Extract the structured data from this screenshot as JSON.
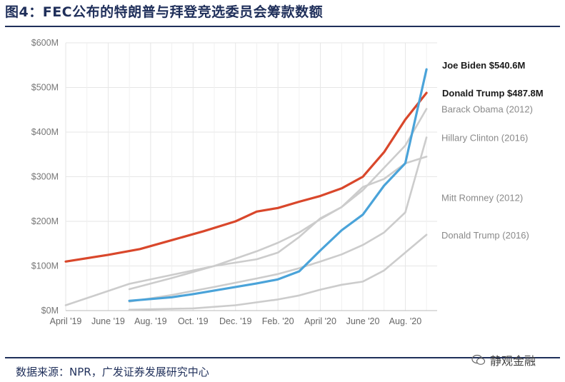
{
  "figure": {
    "title": "图4：FEC公布的特朗普与拜登竞选委员会筹款数额",
    "source": "数据来源：NPR，广发证券发展研究中心",
    "watermark": "静观金融"
  },
  "chart_data": {
    "type": "line",
    "x_ticks": [
      "April '19",
      "June '19",
      "Aug. '19",
      "Oct. '19",
      "Dec. '19",
      "Feb. '20",
      "April '20",
      "June '20",
      "Aug. '20"
    ],
    "y_ticks": [
      "$0M",
      "$100M",
      "$200M",
      "$300M",
      "$400M",
      "$500M",
      "$600M"
    ],
    "ylim": [
      0,
      600
    ],
    "y_unit": "$M",
    "x_unit": "months since April 2019",
    "xlim": [
      0,
      17.5
    ],
    "grid": true,
    "series": [
      {
        "name": "Donald Trump $487.8M",
        "color": "#d9472b",
        "highlight": true,
        "bold_label": true,
        "x": [
          0,
          2,
          3.5,
          5,
          6.5,
          8,
          9,
          10,
          11,
          12,
          13,
          14,
          15,
          16,
          17
        ],
        "values": [
          110,
          125,
          138,
          158,
          178,
          200,
          222,
          230,
          244,
          257,
          274,
          300,
          355,
          428,
          487.8
        ]
      },
      {
        "name": "Joe Biden $540.6M",
        "color": "#4aa3d9",
        "highlight": true,
        "bold_label": true,
        "x": [
          3,
          5,
          6,
          7,
          8,
          9,
          10,
          11,
          12,
          13,
          14,
          15,
          16,
          17
        ],
        "values": [
          22,
          30,
          37,
          45,
          53,
          61,
          70,
          88,
          135,
          180,
          215,
          280,
          330,
          540.6
        ]
      },
      {
        "name": "Barack Obama (2012)",
        "color": "#cccccc",
        "highlight": false,
        "bold_label": false,
        "x": [
          3,
          5,
          7,
          9,
          10,
          11,
          12,
          13,
          14,
          15,
          16,
          17
        ],
        "values": [
          48,
          73,
          100,
          133,
          152,
          175,
          205,
          232,
          270,
          320,
          370,
          452
        ]
      },
      {
        "name": "Hillary Clinton (2016)",
        "color": "#cccccc",
        "highlight": false,
        "bold_label": false,
        "x": [
          3,
          5,
          7,
          9,
          10,
          11,
          12,
          13,
          14,
          15,
          16,
          17
        ],
        "values": [
          20,
          35,
          53,
          72,
          82,
          95,
          110,
          126,
          147,
          175,
          220,
          388
        ]
      },
      {
        "name": "Mitt Romney (2012)",
        "color": "#cccccc",
        "highlight": false,
        "bold_label": false,
        "x": [
          0,
          3,
          5,
          7,
          9,
          10,
          11,
          12,
          13,
          14,
          15,
          16,
          17
        ],
        "values": [
          12,
          60,
          80,
          100,
          115,
          130,
          165,
          207,
          232,
          277,
          295,
          330,
          345
        ]
      },
      {
        "name": "Donald Trump (2016)",
        "color": "#cccccc",
        "highlight": false,
        "bold_label": false,
        "x": [
          3,
          6,
          8,
          10,
          11,
          12,
          13,
          14,
          15,
          16,
          17
        ],
        "values": [
          2,
          5,
          12,
          25,
          34,
          47,
          58,
          65,
          90,
          130,
          170
        ]
      }
    ],
    "romney_overlay": {
      "name": "Mitt Romney (2012)",
      "label_value": 254
    },
    "trump2016_overlay": {
      "label_value": 170
    }
  }
}
